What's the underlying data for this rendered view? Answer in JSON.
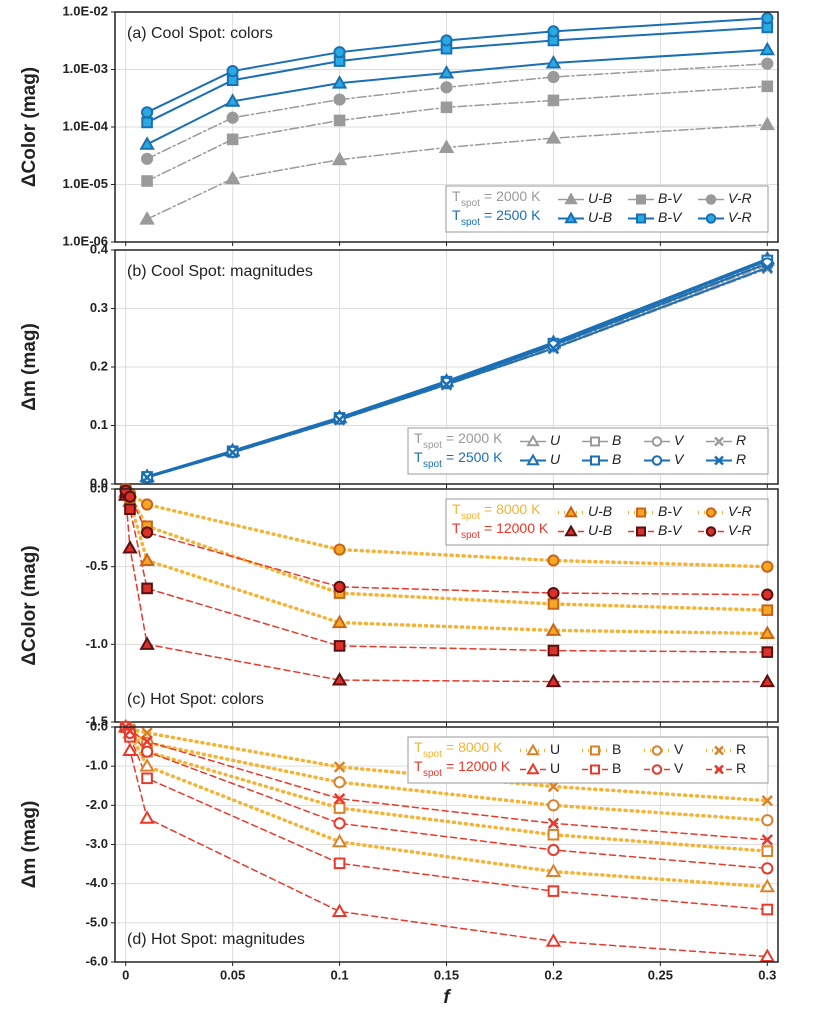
{
  "chart_data": [
    {
      "type": "line",
      "title": "(a) Cool Spot: colors",
      "title_corner": "upper left",
      "ylabel": "ΔColor (mag)",
      "log_scale": true,
      "grid": true,
      "legend_corner": "lower right",
      "show_xtick_labels": false,
      "x": [
        0.01,
        0.05,
        0.1,
        0.15,
        0.2,
        0.3
      ],
      "xlim": [
        -0.005,
        0.305
      ],
      "xticks": [
        0,
        0.05,
        0.1,
        0.15,
        0.2,
        0.25,
        0.3
      ],
      "ylim": [
        1e-06,
        0.01
      ],
      "yticks": [
        {
          "value": 1e-06,
          "label": "1.0E-06"
        },
        {
          "value": 1e-05,
          "label": "1.0E-05"
        },
        {
          "value": 0.0001,
          "label": "1.0E-04"
        },
        {
          "value": 0.001,
          "label": "1.0E-03"
        },
        {
          "value": 0.01,
          "label": "1.0E-02"
        }
      ],
      "groups": [
        {
          "label": "T",
          "sub": "spot",
          "text": "= 2000 K",
          "color": "#9a9a9a",
          "marker_fill": "#9a9a9a",
          "marker_edge": "#9a9a9a",
          "linestyle": "dashdot",
          "series": [
            {
              "name": "U-B",
              "marker": "triangle",
              "values": [
                2.5e-06,
                1.26e-05,
                2.7e-05,
                4.4e-05,
                6.4e-05,
                0.00011
              ]
            },
            {
              "name": "B-V",
              "marker": "square",
              "values": [
                1.15e-05,
                6.1e-05,
                0.00013,
                0.00022,
                0.00029,
                0.00051
              ]
            },
            {
              "name": "V-R",
              "marker": "circle",
              "values": [
                2.8e-05,
                0.000145,
                0.0003,
                0.00049,
                0.00074,
                0.00126
              ]
            }
          ]
        },
        {
          "label": "T",
          "sub": "spot",
          "text": "= 2500 K",
          "color": "#1a6fb5",
          "marker_fill": "#29abe2",
          "marker_edge": "#1a6fb5",
          "linestyle": "solid",
          "series": [
            {
              "name": "U-B",
              "marker": "triangle",
              "values": [
                5e-05,
                0.00028,
                0.00058,
                0.00087,
                0.0013,
                0.0022
              ]
            },
            {
              "name": "B-V",
              "marker": "square",
              "values": [
                0.00012,
                0.00065,
                0.0014,
                0.0023,
                0.0032,
                0.0054
              ]
            },
            {
              "name": "V-R",
              "marker": "circle",
              "values": [
                0.00018,
                0.00094,
                0.002,
                0.0032,
                0.0046,
                0.0078
              ]
            }
          ]
        }
      ]
    },
    {
      "type": "line",
      "title": "(b) Cool Spot: magnitudes",
      "title_corner": "upper left",
      "ylabel": "Δm (mag)",
      "log_scale": false,
      "grid": true,
      "legend_corner": "lower right",
      "show_xtick_labels": false,
      "x": [
        0.01,
        0.05,
        0.1,
        0.15,
        0.2,
        0.3
      ],
      "xlim": [
        -0.005,
        0.305
      ],
      "xticks": [
        0,
        0.05,
        0.1,
        0.15,
        0.2,
        0.25,
        0.3
      ],
      "ylim": [
        0,
        0.4
      ],
      "yticks": [
        {
          "value": 0,
          "label": "0.0"
        },
        0.1,
        0.2,
        0.3,
        0.4
      ],
      "groups": [
        {
          "label": "T",
          "sub": "spot",
          "text": "= 2000 K",
          "color": "#9a9a9a",
          "marker_fill": "none",
          "marker_edge": "#9a9a9a",
          "linestyle": "dashdot",
          "series": [
            {
              "name": "U",
              "marker": "triangle",
              "values": [
                0.012,
                0.056,
                0.113,
                0.175,
                0.24,
                0.382
              ]
            },
            {
              "name": "B",
              "marker": "square",
              "values": [
                0.012,
                0.055,
                0.112,
                0.174,
                0.238,
                0.379
              ]
            },
            {
              "name": "V",
              "marker": "circle",
              "values": [
                0.011,
                0.054,
                0.111,
                0.172,
                0.235,
                0.374
              ]
            },
            {
              "name": "R",
              "marker": "x",
              "values": [
                0.011,
                0.053,
                0.109,
                0.169,
                0.231,
                0.368
              ]
            }
          ]
        },
        {
          "label": "T",
          "sub": "spot",
          "text": "= 2500 K",
          "color": "#1a6fb5",
          "marker_fill": "none",
          "marker_edge": "#1a6fb5",
          "linestyle": "solid",
          "series": [
            {
              "name": "U",
              "marker": "triangle",
              "values": [
                0.013,
                0.057,
                0.114,
                0.176,
                0.242,
                0.385
              ]
            },
            {
              "name": "B",
              "marker": "square",
              "values": [
                0.012,
                0.056,
                0.113,
                0.175,
                0.24,
                0.382
              ]
            },
            {
              "name": "V",
              "marker": "circle",
              "values": [
                0.012,
                0.055,
                0.112,
                0.173,
                0.237,
                0.377
              ]
            },
            {
              "name": "R",
              "marker": "x",
              "values": [
                0.011,
                0.054,
                0.11,
                0.17,
                0.232,
                0.37
              ]
            }
          ]
        }
      ]
    },
    {
      "type": "line",
      "title": "(c) Hot Spot: colors",
      "title_corner": "lower left",
      "ylabel": "ΔColor (mag)",
      "log_scale": false,
      "grid": true,
      "legend_corner": "upper right",
      "show_xtick_labels": false,
      "x": [
        0,
        0.002,
        0.01,
        0.1,
        0.2,
        0.3
      ],
      "xlim": [
        -0.005,
        0.305
      ],
      "xticks": [
        0,
        0.05,
        0.1,
        0.15,
        0.2,
        0.25,
        0.3
      ],
      "ylim": [
        -1.5,
        0
      ],
      "yticks": [
        -1.5,
        {
          "value": -1,
          "label": "-1.0"
        },
        -0.5,
        {
          "value": 0,
          "label": "0.0"
        }
      ],
      "groups": [
        {
          "label": "T",
          "sub": "spot",
          "text": "= 8000 K",
          "color": "#f5b335",
          "marker_fill": "#f5a623",
          "marker_edge": "#c8651b",
          "linestyle": "dotted",
          "series": [
            {
              "name": "U-B",
              "marker": "triangle",
              "values": [
                -0.02,
                -0.08,
                -0.46,
                -0.86,
                -0.91,
                -0.93
              ]
            },
            {
              "name": "B-V",
              "marker": "square",
              "values": [
                -0.01,
                -0.05,
                -0.24,
                -0.67,
                -0.74,
                -0.78
              ]
            },
            {
              "name": "V-R",
              "marker": "circle",
              "values": [
                0,
                -0.03,
                -0.1,
                -0.39,
                -0.46,
                -0.5
              ]
            }
          ]
        },
        {
          "label": "T",
          "sub": "spot",
          "text": "= 12000 K",
          "color": "#e8392b",
          "marker_fill": "#d9302a",
          "marker_edge": "#5a1010",
          "linestyle": "dashed",
          "series": [
            {
              "name": "U-B",
              "marker": "triangle",
              "values": [
                -0.04,
                -0.38,
                -1,
                -1.23,
                -1.24,
                -1.24
              ]
            },
            {
              "name": "B-V",
              "marker": "square",
              "values": [
                -0.02,
                -0.13,
                -0.64,
                -1.01,
                -1.04,
                -1.05
              ]
            },
            {
              "name": "V-R",
              "marker": "circle",
              "values": [
                -0.01,
                -0.05,
                -0.28,
                -0.63,
                -0.67,
                -0.68
              ]
            }
          ]
        }
      ]
    },
    {
      "type": "line",
      "title": "(d) Hot Spot: magnitudes",
      "title_corner": "lower left",
      "ylabel": "Δm (mag)",
      "xlabel": "f",
      "log_scale": false,
      "grid": true,
      "legend_corner": "upper right",
      "show_xtick_labels": true,
      "x": [
        0,
        0.002,
        0.01,
        0.1,
        0.2,
        0.3
      ],
      "xlim": [
        -0.005,
        0.305
      ],
      "xticks": [
        0,
        0.05,
        0.1,
        0.15,
        0.2,
        0.25,
        0.3
      ],
      "ylim": [
        -6,
        0
      ],
      "yticks": [
        {
          "value": -6,
          "label": "-6.0"
        },
        {
          "value": -5,
          "label": "-5.0"
        },
        {
          "value": -4,
          "label": "-4.0"
        },
        {
          "value": -3,
          "label": "-3.0"
        },
        {
          "value": -2,
          "label": "-2.0"
        },
        {
          "value": -1,
          "label": "-1.0"
        },
        {
          "value": 0,
          "label": "0.0"
        }
      ],
      "groups": [
        {
          "label": "T",
          "sub": "spot",
          "text": "= 8000 K",
          "color": "#f5b335",
          "marker_fill": "none",
          "marker_edge": "#d9822b",
          "linestyle": "dotted",
          "series": [
            {
              "name": "U",
              "marker": "triangle",
              "values": [
                0,
                -0.15,
                -1,
                -2.93,
                -3.69,
                -4.08
              ]
            },
            {
              "name": "B",
              "marker": "square",
              "values": [
                0,
                -0.1,
                -0.63,
                -2.07,
                -2.75,
                -3.17
              ]
            },
            {
              "name": "V",
              "marker": "circle",
              "values": [
                0,
                -0.07,
                -0.4,
                -1.41,
                -2,
                -2.38
              ]
            },
            {
              "name": "R",
              "marker": "x",
              "values": [
                0,
                -0.05,
                -0.15,
                -1.02,
                -1.52,
                -1.88
              ]
            }
          ]
        },
        {
          "label": "T",
          "sub": "spot",
          "text": "= 12000 K",
          "color": "#e8392b",
          "marker_fill": "none",
          "marker_edge": "#e8392b",
          "linestyle": "dashed",
          "series": [
            {
              "name": "U",
              "marker": "triangle",
              "values": [
                0,
                -0.6,
                -2.33,
                -4.71,
                -5.47,
                -5.86
              ]
            },
            {
              "name": "B",
              "marker": "square",
              "values": [
                0,
                -0.25,
                -1.31,
                -3.48,
                -4.19,
                -4.66
              ]
            },
            {
              "name": "V",
              "marker": "circle",
              "values": [
                0,
                -0.15,
                -0.63,
                -2.46,
                -3.14,
                -3.61
              ]
            },
            {
              "name": "R",
              "marker": "x",
              "values": [
                0,
                -0.1,
                -0.37,
                -1.83,
                -2.46,
                -2.88
              ]
            }
          ]
        }
      ]
    }
  ]
}
